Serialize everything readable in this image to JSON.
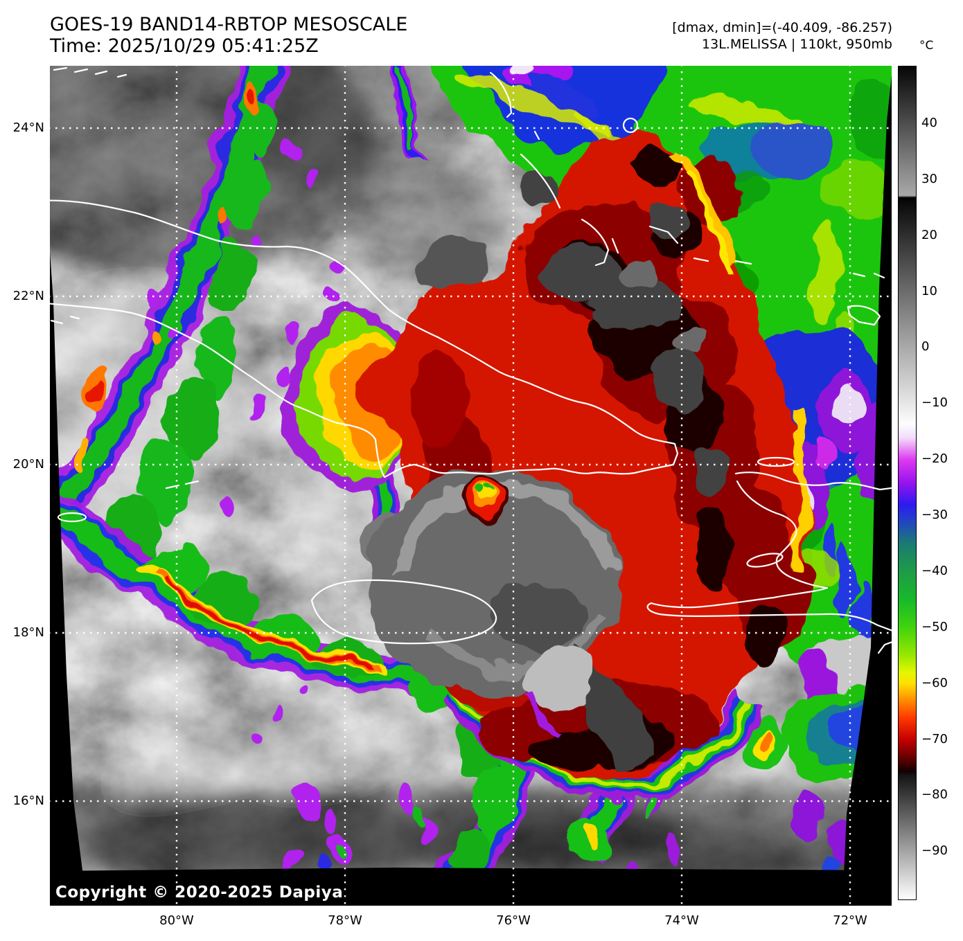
{
  "header": {
    "title": "GOES-19 BAND14-RBTOP MESOSCALE",
    "time_line": "Time: 2025/10/29 05:41:25Z"
  },
  "info_panel": {
    "minmax_line": "[dmax, dmin]=(-40.409, -86.257)",
    "storm_line": "13L.MELISSA | 110kt, 950mb"
  },
  "colorbar": {
    "unit_label": "°C",
    "ticks": [
      {
        "label": "40",
        "value": 40
      },
      {
        "label": "30",
        "value": 30
      },
      {
        "label": "20",
        "value": 20
      },
      {
        "label": "10",
        "value": 10
      },
      {
        "label": "0",
        "value": 0
      },
      {
        "label": "−10",
        "value": -10
      },
      {
        "label": "−20",
        "value": -20
      },
      {
        "label": "−30",
        "value": -30
      },
      {
        "label": "−40",
        "value": -40
      },
      {
        "label": "−50",
        "value": -50
      },
      {
        "label": "−60",
        "value": -60
      },
      {
        "label": "−70",
        "value": -70
      },
      {
        "label": "−80",
        "value": -80
      },
      {
        "label": "−90",
        "value": -90
      }
    ],
    "gradient_stops": [
      [
        0,
        "#060606"
      ],
      [
        15.5,
        "#a9a9a9"
      ],
      [
        15.75,
        "#000000"
      ],
      [
        16.3,
        "#0a0a0a"
      ],
      [
        42.9,
        "#fdfdfd"
      ],
      [
        44.6,
        "#f2dcfa"
      ],
      [
        47.2,
        "#dd3af0"
      ],
      [
        49.9,
        "#9a14ee"
      ],
      [
        52.6,
        "#2d1af0"
      ],
      [
        54.6,
        "#2244c4"
      ],
      [
        57.3,
        "#1b7b72"
      ],
      [
        60.7,
        "#1e9c46"
      ],
      [
        64.0,
        "#17b92a"
      ],
      [
        67.4,
        "#41d40d"
      ],
      [
        70.8,
        "#9ce800"
      ],
      [
        72.8,
        "#e6f600"
      ],
      [
        74.1,
        "#ffdf00"
      ],
      [
        76.1,
        "#ff8c00"
      ],
      [
        78.2,
        "#ff3800"
      ],
      [
        80.8,
        "#c40000"
      ],
      [
        83.5,
        "#4e0000"
      ],
      [
        84.6,
        "#120000"
      ],
      [
        85.1,
        "#151515"
      ],
      [
        100,
        "#ffffff"
      ]
    ]
  },
  "axes": {
    "lat_ticks": [
      {
        "label": "24°N",
        "lat": 24
      },
      {
        "label": "22°N",
        "lat": 22
      },
      {
        "label": "20°N",
        "lat": 20
      },
      {
        "label": "18°N",
        "lat": 18
      },
      {
        "label": "16°N",
        "lat": 16
      }
    ],
    "lon_ticks": [
      {
        "label": "80°W",
        "lon": 80
      },
      {
        "label": "78°W",
        "lon": 78
      },
      {
        "label": "76°W",
        "lon": 76
      },
      {
        "label": "74°W",
        "lon": 74
      },
      {
        "label": "72°W",
        "lon": 72
      }
    ]
  },
  "map_overlay": {
    "copyright": "Copyright © 2020-2025 Dapiya"
  },
  "palette": {
    "cold_purple": "#9a14ee",
    "cold_blue": "#2d1af0",
    "cold_green": "#17b92a",
    "cold_yellow": "#ffdf00",
    "cold_orange": "#ff8c00",
    "cold_red": "#e01000",
    "cold_darkred": "#4e0000",
    "warm_gray": "#6b6b6b",
    "background": "#ffffff",
    "coastline": "#ffffff",
    "gridline": "#ffffff",
    "text": "#000000"
  }
}
